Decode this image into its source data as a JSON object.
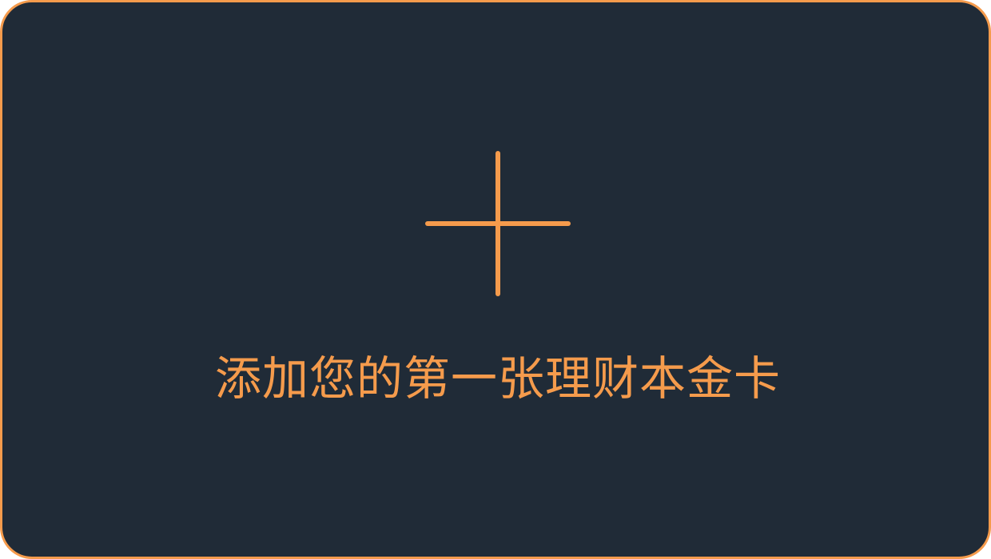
{
  "add_card": {
    "label": "添加您的第一张理财本金卡",
    "icon": "plus-icon",
    "accent_color": "#F59B4C",
    "background_color": "#202B37"
  }
}
